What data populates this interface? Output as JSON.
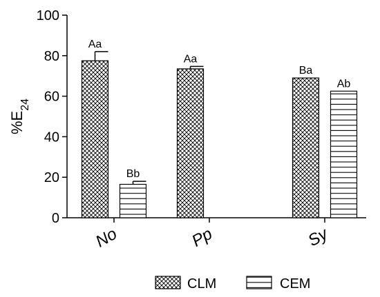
{
  "chart_data": {
    "type": "bar",
    "categories": [
      "No",
      "Pp",
      "Sy"
    ],
    "series": [
      {
        "name": "CLM",
        "pattern": "crosshatch",
        "values": [
          77.5,
          73.5,
          69
        ],
        "errors": [
          4.5,
          1.2,
          0
        ],
        "labels": [
          "Aa",
          "Aa",
          "Ba"
        ]
      },
      {
        "name": "CEM",
        "pattern": "horizontal",
        "values": [
          16.5,
          0,
          62.5
        ],
        "errors": [
          1.5,
          0,
          0
        ],
        "labels": [
          "Bb",
          "",
          "Ab"
        ]
      }
    ],
    "ylabel": "%E",
    "ylabel_subscript": "24",
    "ylim": [
      0,
      100
    ],
    "yticks": [
      "0",
      "20",
      "40",
      "60",
      "80",
      "100"
    ],
    "legend_position": "bottom",
    "grid": false,
    "colors": {
      "bar_fill": "#ffffff",
      "stroke": "#000000"
    }
  }
}
